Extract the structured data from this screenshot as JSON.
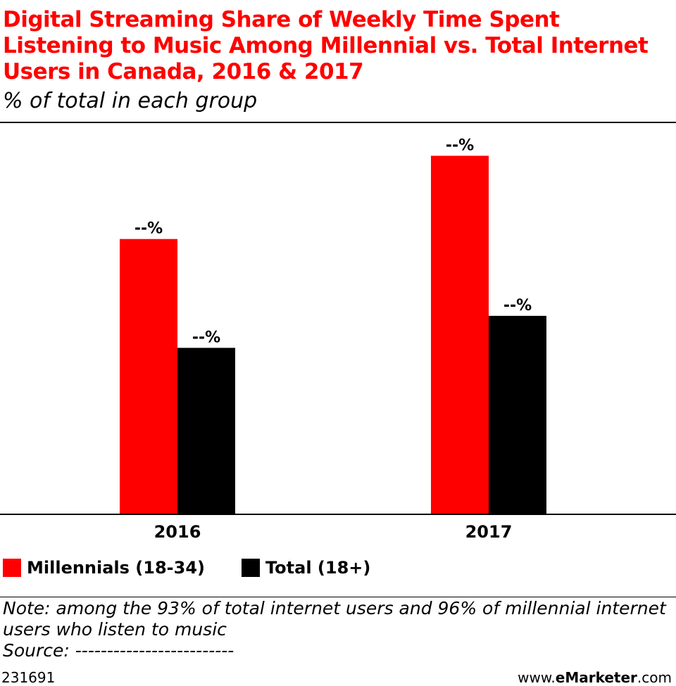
{
  "header": {
    "title": "Digital Streaming Share of Weekly Time Spent Listening to Music Among Millennial vs. Total Internet Users in Canada, 2016 & 2017",
    "subtitle": "% of total in each group"
  },
  "chart_data": {
    "type": "bar",
    "title": "Digital Streaming Share of Weekly Time Spent Listening to Music Among Millennial vs. Total Internet Users in Canada, 2016 & 2017",
    "subtitle": "% of total in each group",
    "xlabel": "",
    "ylabel": "",
    "categories": [
      "2016",
      "2017"
    ],
    "series": [
      {
        "name": "Millennials (18-34)",
        "color": "#ff0000",
        "values": [
          43,
          56
        ],
        "labels": [
          "--%",
          "--%"
        ]
      },
      {
        "name": "Total (18+)",
        "color": "#000000",
        "values": [
          26,
          31
        ],
        "labels": [
          "--%",
          "--%"
        ]
      }
    ],
    "ylim": [
      0,
      60
    ],
    "grid": false,
    "legend_position": "bottom-left"
  },
  "legend": {
    "items": [
      {
        "label": "Millennials (18-34)",
        "color": "#ff0000"
      },
      {
        "label": "Total (18+)",
        "color": "#000000"
      }
    ]
  },
  "notes": {
    "note_line1": "Note: among the 93% of total internet users and 96% of millennial internet",
    "note_line2": "users who listen to music",
    "source": "Source: -------------------------"
  },
  "footer": {
    "chart_id": "231691",
    "brand_prefix": "www.",
    "brand_bold": "eMarketer",
    "brand_suffix": ".com"
  },
  "colors": {
    "title": "#ff0000",
    "millennials": "#ff0000",
    "total": "#000000"
  }
}
